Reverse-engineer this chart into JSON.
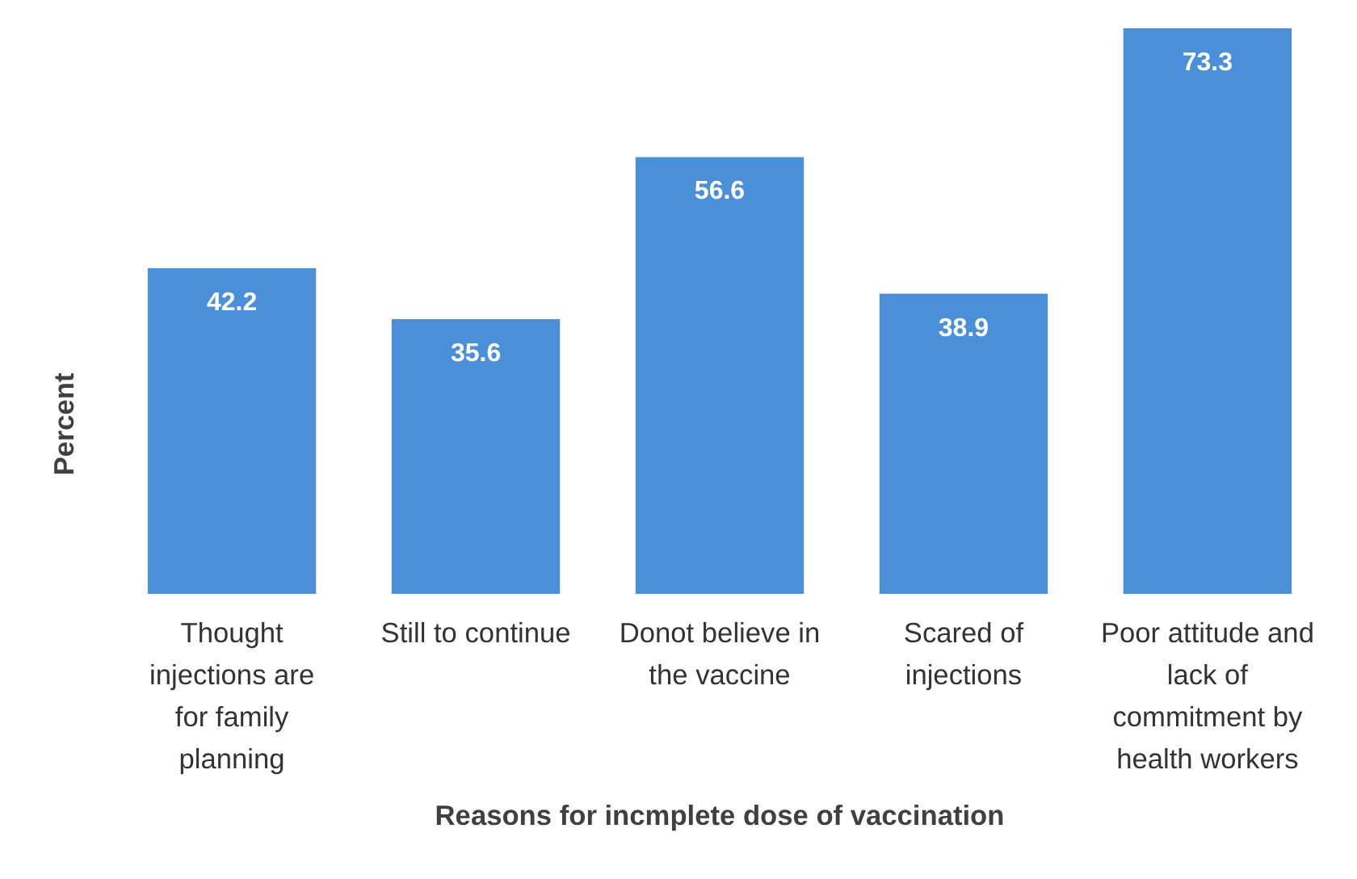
{
  "chart_data": {
    "type": "bar",
    "xlabel": "Reasons for incmplete dose of vaccination",
    "ylabel": "Percent",
    "categories": [
      "Thought injections are for family planning",
      "Still to continue",
      "Donot believe in the vaccine",
      "Scared of injections",
      "Poor attitude and lack of commitment by health workers"
    ],
    "values": [
      42.2,
      35.6,
      56.6,
      38.9,
      73.3
    ],
    "color": "#4a8fd8",
    "data_labels": true
  }
}
